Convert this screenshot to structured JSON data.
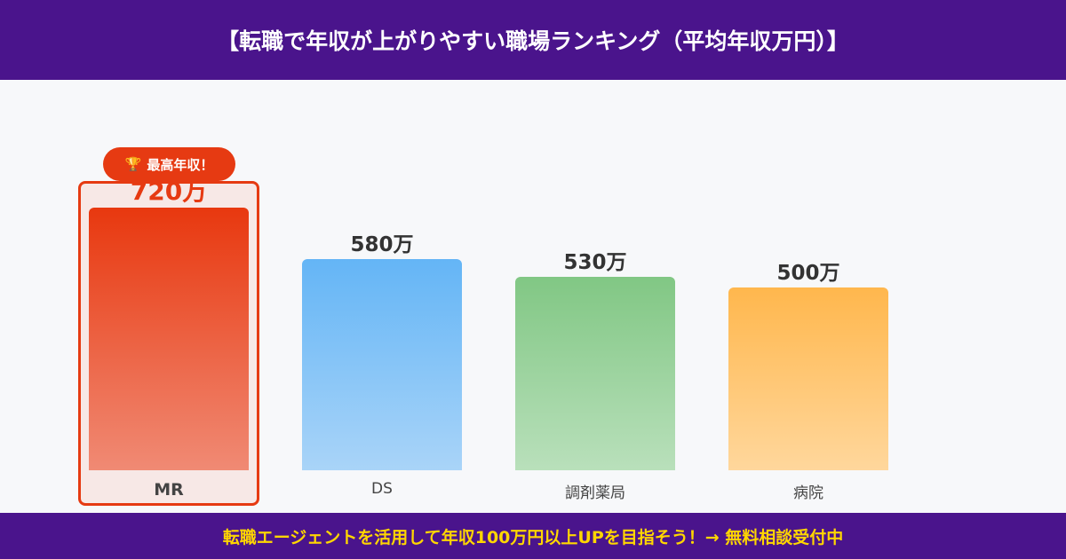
{
  "header": {
    "title": "【転職で年収が上がりやすい職場ランキング（平均年収万円）】"
  },
  "badge": {
    "icon": "trophy-icon",
    "label": "最高年収！"
  },
  "chart_data": {
    "type": "bar",
    "categories": [
      "MR",
      "DS",
      "調剤薬局",
      "病院"
    ],
    "values": [
      720,
      580,
      530,
      500
    ],
    "value_labels": [
      "720万",
      "580万",
      "530万",
      "500万"
    ],
    "ylim": [
      0,
      720
    ],
    "grid": false,
    "colors": [
      [
        "#e8380f",
        "#f08a74"
      ],
      [
        "#64b5f6",
        "#a9d4f8"
      ],
      [
        "#81c784",
        "#b9e0bb"
      ],
      [
        "#ffb74d",
        "#ffd79c"
      ]
    ],
    "highlight": "MR"
  },
  "footer": {
    "text": "転職エージェントを活用して年収100万円以上UPを目指そう！→ 無料相談受付中"
  }
}
